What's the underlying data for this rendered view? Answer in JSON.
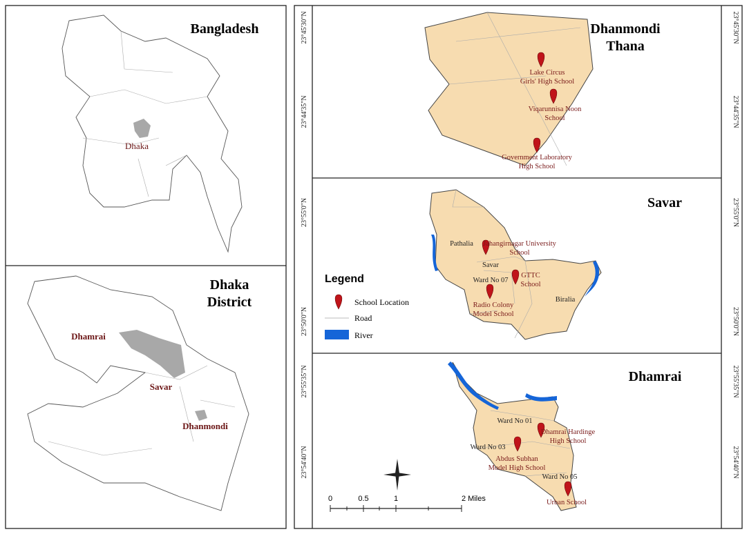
{
  "bangladesh": {
    "title": "Bangladesh",
    "label": "Dhaka"
  },
  "dhaka_district": {
    "title_lines": [
      "Dhaka",
      "District"
    ],
    "labels": [
      "Dhamrai",
      "Savar",
      "Dhanmondi"
    ]
  },
  "dhanmondi": {
    "title_lines": [
      "Dhanmondi",
      "Thana"
    ],
    "schools": [
      [
        "Lake Circus",
        "Girls' High School"
      ],
      [
        "Viqarunnisa Noon",
        "School"
      ],
      [
        "Government Laboratory",
        "High School"
      ]
    ],
    "lat_labels": [
      "23°45'30\"N",
      "23°44'35\"N"
    ]
  },
  "savar": {
    "title": "Savar",
    "areas": [
      "Pathalia",
      "Biralia"
    ],
    "ward_lines": [
      "Savar",
      "Ward No 07"
    ],
    "schools": [
      [
        "Jahangirnagar University",
        "School"
      ],
      [
        "GTTC",
        "School"
      ],
      [
        "Radio Colony",
        "Model School"
      ]
    ],
    "lat_labels": [
      "23°55'0\"N",
      "23°50'0\"N"
    ]
  },
  "legend": {
    "title": "Legend",
    "items": [
      "School Location",
      "Road",
      "River"
    ]
  },
  "dhamrai": {
    "title": "Dhamrai",
    "wards": [
      "Ward No 01",
      "Ward No 03",
      "Ward No 05"
    ],
    "schools": [
      [
        "Dhamrai Hardinge",
        "High School"
      ],
      [
        "Abdus Subhan",
        "Model High School"
      ],
      [
        "Urban School"
      ]
    ],
    "lat_labels": [
      "23°55'35\"N",
      "23°54'40\"N"
    ]
  },
  "scale_bar": {
    "labels": [
      "0",
      "0.5",
      "1",
      "2 Miles"
    ]
  }
}
